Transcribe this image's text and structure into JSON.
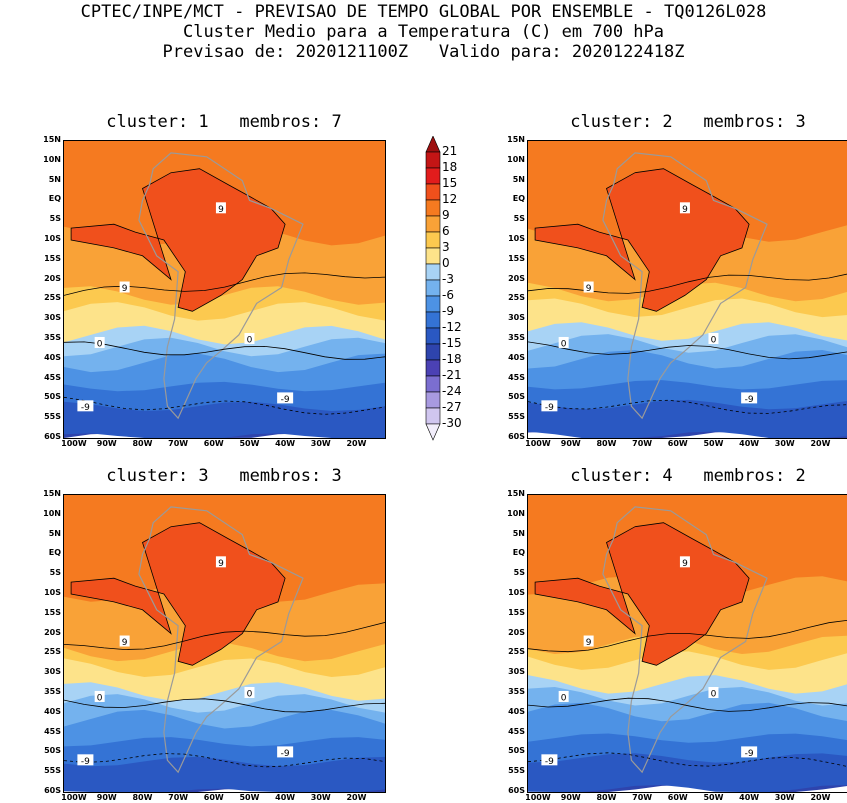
{
  "header": {
    "line1": "CPTEC/INPE/MCT - PREVISAO DE TEMPO GLOBAL POR ENSEMBLE - TQ0126L028",
    "line2": "Cluster Medio para a Temperatura (C) em 700 hPa",
    "line3": "Previsao de: 2020121100Z   Valido para: 2020122418Z"
  },
  "axes": {
    "lat_labels": [
      "15N",
      "10N",
      "5N",
      "EQ",
      "5S",
      "10S",
      "15S",
      "20S",
      "25S",
      "30S",
      "35S",
      "40S",
      "45S",
      "50S",
      "55S",
      "60S"
    ],
    "lon_labels": [
      "100W",
      "90W",
      "80W",
      "70W",
      "60W",
      "50W",
      "40W",
      "30W",
      "20W"
    ]
  },
  "colorbar": {
    "labels": [
      "21",
      "18",
      "15",
      "12",
      "9",
      "6",
      "3",
      "0",
      "-3",
      "-6",
      "-9",
      "-12",
      "-15",
      "-18",
      "-21",
      "-24",
      "-27",
      "-30"
    ],
    "colors": [
      "#9e1010",
      "#c41515",
      "#e21c1c",
      "#f0501c",
      "#f57a20",
      "#f9a237",
      "#fcc94f",
      "#fde38a",
      "#a8d3f5",
      "#74b2ee",
      "#4d92e4",
      "#3473d5",
      "#2a58c2",
      "#2e44ad",
      "#4b41b4",
      "#7b6ed0",
      "#a89ae0",
      "#d0c6ef",
      "#f2eefb"
    ]
  },
  "panels": [
    {
      "title": "cluster: 1   membros: 7"
    },
    {
      "title": "cluster: 2   membros: 3"
    },
    {
      "title": "cluster: 3   membros: 3"
    },
    {
      "title": "cluster: 4   membros: 2"
    }
  ],
  "contour_labels": {
    "nine": "9",
    "zero": "0",
    "minus_nine": "-9"
  }
}
